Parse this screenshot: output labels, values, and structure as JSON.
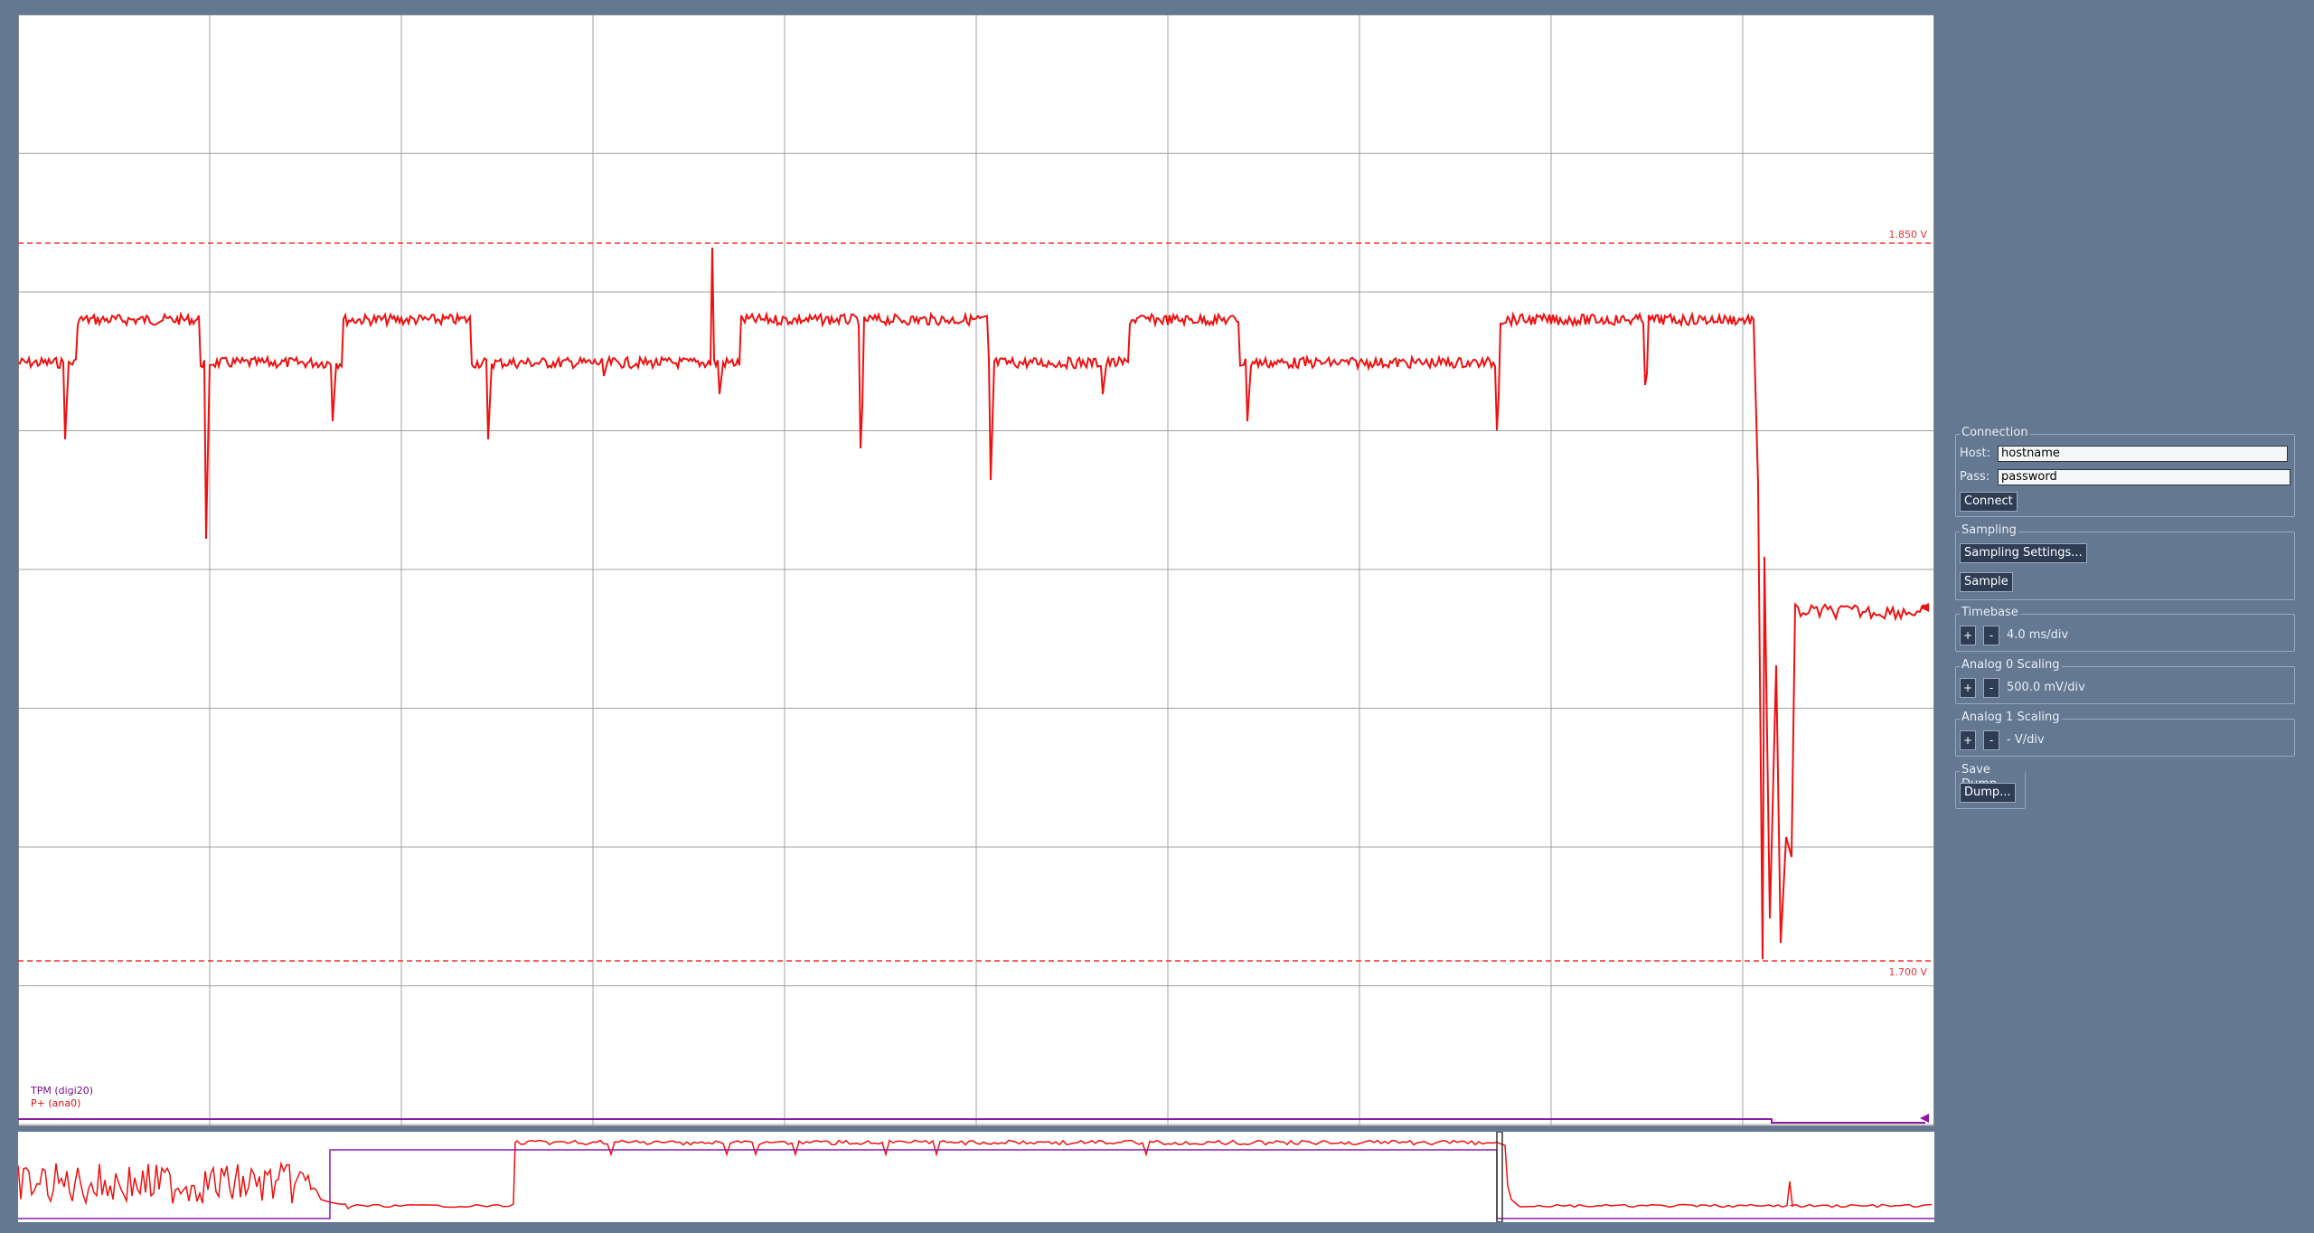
{
  "scope": {
    "ref_high_label": "1.850 V",
    "ref_low_label": "1.700 V",
    "legend": {
      "digital": "TPM (digi20)",
      "analog": "P+ (ana0)"
    },
    "colors": {
      "analog_trace": "#ee1111",
      "digital_trace": "#8a1aa6",
      "grid": "#a0a0a0",
      "ref_line": "#ee3333"
    },
    "trace": {
      "base_level_v": 1.825,
      "high_level_v": 1.834,
      "drop_level_v": 1.773,
      "glitch_min_v": 1.7
    }
  },
  "controls": {
    "connection": {
      "title": "Connection",
      "host_label": "Host:",
      "host_value": "hostname",
      "pass_label": "Pass:",
      "pass_value": "password",
      "connect_button": "Connect"
    },
    "sampling": {
      "title": "Sampling",
      "settings_button": "Sampling Settings...",
      "sample_button": "Sample"
    },
    "timebase": {
      "title": "Timebase",
      "plus": "+",
      "minus": "-",
      "value": "4.0 ms/div"
    },
    "analog0": {
      "title": "Analog 0 Scaling",
      "plus": "+",
      "minus": "-",
      "value": "500.0 mV/div"
    },
    "analog1": {
      "title": "Analog 1 Scaling",
      "plus": "+",
      "minus": "-",
      "value": "- V/div"
    },
    "save": {
      "title": "Save Dump",
      "dump_button": "Dump..."
    }
  }
}
